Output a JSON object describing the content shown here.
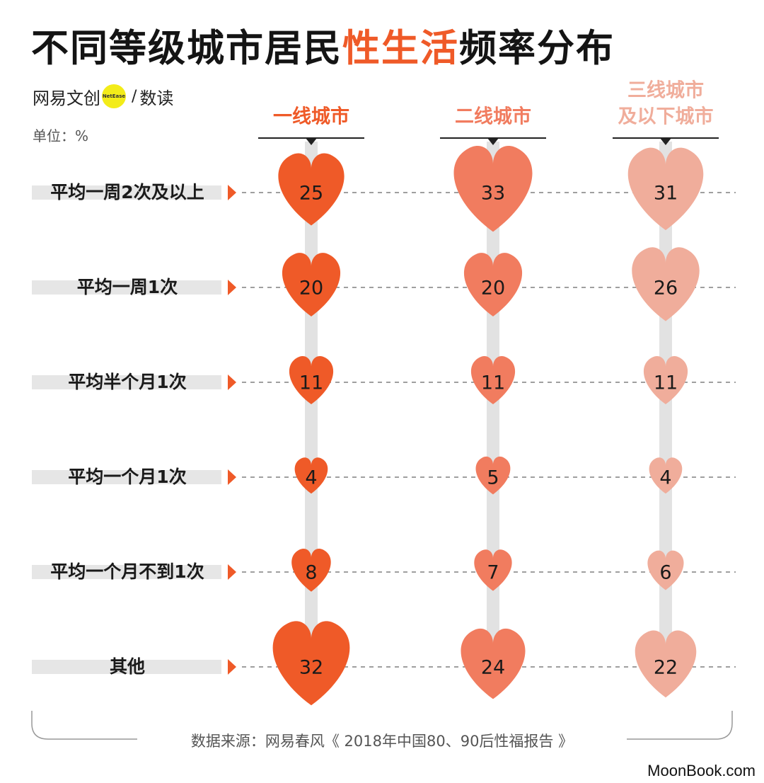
{
  "title": {
    "part1": "不同等级城市居民",
    "highlight": "性生活",
    "part2": "频率分布"
  },
  "brand": {
    "name": "网易文创",
    "badge": "NetEase",
    "slash": "/",
    "sub": "数读"
  },
  "unit": "单位：%",
  "source": "数据来源：网易春风《 2018年中国80、90后性福报告 》",
  "watermark": "MoonBook.com",
  "colors": {
    "accent": "#ef5a28",
    "tier1": "#ef5a28",
    "tier2": "#f17c5f",
    "tier3": "#f0ad9b",
    "label_band": "#e6e6e6",
    "connector": "#e2e2e2"
  },
  "chart_data": {
    "type": "heatmap",
    "title": "不同等级城市居民性生活频率分布",
    "unit": "%",
    "categories": [
      "平均一周2次及以上",
      "平均一周1次",
      "平均半个月1次",
      "平均一个月1次",
      "平均一个月不到1次",
      "其他"
    ],
    "series": [
      {
        "name": "一线城市",
        "values": [
          25,
          20,
          11,
          4,
          8,
          32
        ]
      },
      {
        "name": "二线城市",
        "values": [
          33,
          20,
          11,
          5,
          7,
          24
        ]
      },
      {
        "name": "三线城市及以下城市",
        "name_lines": [
          "三线城市",
          "及以下城市"
        ],
        "values": [
          31,
          26,
          11,
          4,
          6,
          22
        ]
      }
    ],
    "marker": "heart"
  }
}
